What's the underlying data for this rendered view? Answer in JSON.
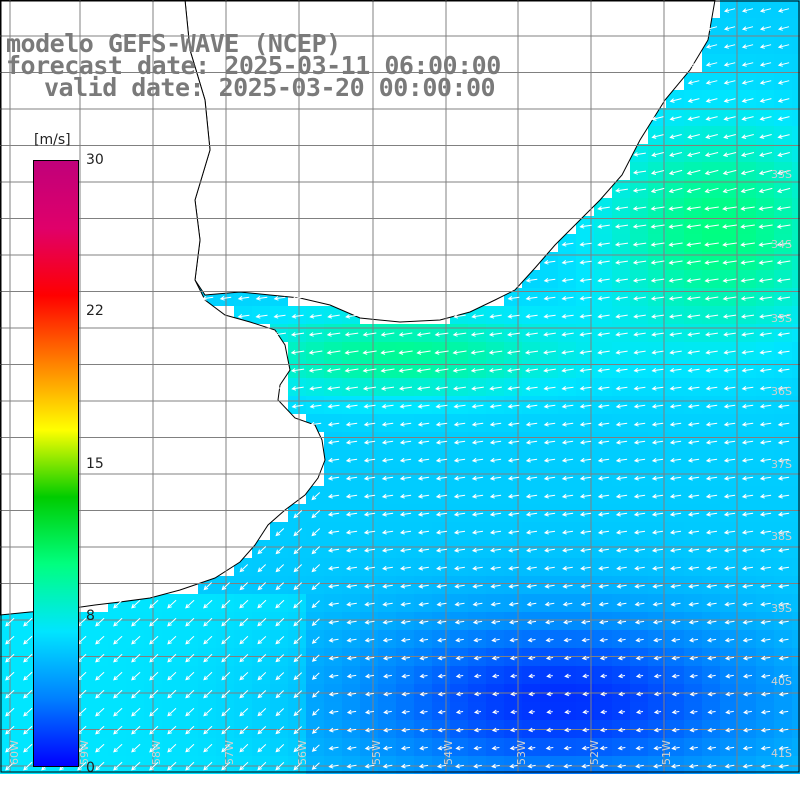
{
  "title": {
    "model": "modelo GEFS-WAVE (NCEP)",
    "forecast": "forecast date: 2025-03-11 06:00:00",
    "valid": "valid date: 2025-03-20 00:00:00"
  },
  "colorbar": {
    "unit": "[m/s]",
    "ticks": [
      "30",
      "22",
      "15",
      "8",
      "0"
    ],
    "tick_values": [
      30,
      22,
      15,
      8,
      0
    ],
    "colors": [
      "#0000ff",
      "#0080ff",
      "#00e5ff",
      "#00ff80",
      "#00cc00",
      "#ffff00",
      "#ff8000",
      "#ff0000",
      "#e0006a",
      "#c0007a"
    ]
  },
  "lat_labels": [
    "33S",
    "34S",
    "35S",
    "36S",
    "37S",
    "38S",
    "39S",
    "40S",
    "41S"
  ],
  "lon_labels": [
    "60W",
    "59W",
    "58W",
    "57W",
    "56W",
    "55W",
    "54W",
    "53W",
    "52W",
    "51W"
  ],
  "field": {
    "variable": "wind speed",
    "colors": {
      "land": "#ffffff",
      "coast": "#000000",
      "grid": "#808080",
      "arrow": "#ffffff"
    }
  }
}
